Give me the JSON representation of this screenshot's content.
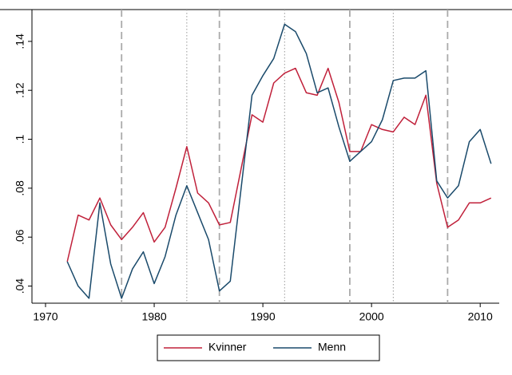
{
  "chart_data": {
    "type": "line",
    "x": [
      1972,
      1973,
      1974,
      1975,
      1976,
      1977,
      1978,
      1979,
      1980,
      1981,
      1982,
      1983,
      1984,
      1985,
      1986,
      1987,
      1988,
      1989,
      1990,
      1991,
      1992,
      1993,
      1994,
      1995,
      1996,
      1997,
      1998,
      1999,
      2000,
      2001,
      2002,
      2003,
      2004,
      2005,
      2006,
      2007,
      2008,
      2009,
      2010,
      2011
    ],
    "series": [
      {
        "name": "Kvinner",
        "color": "#c0203a",
        "values": [
          0.05,
          0.069,
          0.067,
          0.076,
          0.065,
          0.059,
          0.064,
          0.07,
          0.058,
          0.064,
          0.08,
          0.097,
          0.078,
          0.074,
          0.065,
          0.066,
          0.088,
          0.11,
          0.107,
          0.123,
          0.127,
          0.129,
          0.119,
          0.118,
          0.129,
          0.115,
          0.095,
          0.095,
          0.106,
          0.104,
          0.103,
          0.109,
          0.106,
          0.118,
          0.082,
          0.064,
          0.067,
          0.074,
          0.074,
          0.076
        ]
      },
      {
        "name": "Menn",
        "color": "#1a4a6b",
        "values": [
          0.05,
          0.04,
          0.035,
          0.074,
          0.049,
          0.035,
          0.047,
          0.054,
          0.041,
          0.052,
          0.069,
          0.081,
          0.07,
          0.059,
          0.038,
          0.042,
          0.08,
          0.118,
          0.126,
          0.133,
          0.147,
          0.144,
          0.135,
          0.119,
          0.121,
          0.105,
          0.091,
          0.095,
          0.099,
          0.108,
          0.124,
          0.125,
          0.125,
          0.128,
          0.083,
          0.076,
          0.081,
          0.099,
          0.104,
          0.09
        ]
      }
    ],
    "xlim": [
      1968.75,
      2011.75
    ],
    "ylim": [
      0.033,
      0.153
    ],
    "xticks": [
      1970,
      1980,
      1990,
      2000,
      2010
    ],
    "yticks": [
      {
        "value": 0.04,
        "label": ".04"
      },
      {
        "value": 0.06,
        "label": ".06"
      },
      {
        "value": 0.08,
        "label": ".08"
      },
      {
        "value": 0.1,
        "label": ".1"
      },
      {
        "value": 0.12,
        "label": ".12"
      },
      {
        "value": 0.14,
        "label": ".14"
      }
    ],
    "vlines": [
      {
        "x": 1977,
        "style": "dashed"
      },
      {
        "x": 1983,
        "style": "dotted"
      },
      {
        "x": 1986,
        "style": "dashed"
      },
      {
        "x": 1992,
        "style": "dotted"
      },
      {
        "x": 1998,
        "style": "dashed"
      },
      {
        "x": 2002,
        "style": "dotted"
      },
      {
        "x": 2007,
        "style": "dashed"
      }
    ],
    "legend": "bottom"
  }
}
